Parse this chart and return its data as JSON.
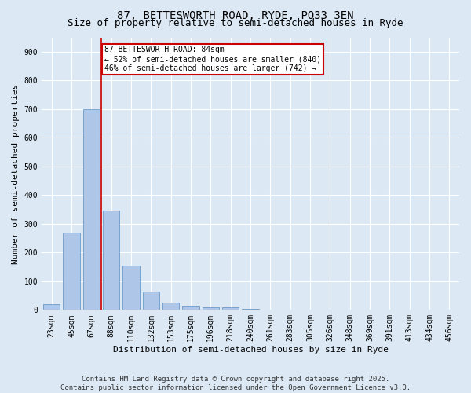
{
  "title_line1": "87, BETTESWORTH ROAD, RYDE, PO33 3EN",
  "title_line2": "Size of property relative to semi-detached houses in Ryde",
  "xlabel": "Distribution of semi-detached houses by size in Ryde",
  "ylabel": "Number of semi-detached properties",
  "bar_labels": [
    "23sqm",
    "45sqm",
    "67sqm",
    "88sqm",
    "110sqm",
    "132sqm",
    "153sqm",
    "175sqm",
    "196sqm",
    "218sqm",
    "240sqm",
    "261sqm",
    "283sqm",
    "305sqm",
    "326sqm",
    "348sqm",
    "369sqm",
    "391sqm",
    "413sqm",
    "434sqm",
    "456sqm"
  ],
  "bar_values": [
    20,
    270,
    700,
    345,
    155,
    65,
    25,
    15,
    10,
    10,
    5,
    0,
    0,
    0,
    0,
    0,
    0,
    0,
    0,
    0,
    0
  ],
  "bar_color": "#aec6e8",
  "bar_edge_color": "#5a8fc0",
  "vline_x_index": 2.5,
  "annotation_title": "87 BETTESWORTH ROAD: 84sqm",
  "annotation_line2": "← 52% of semi-detached houses are smaller (840)",
  "annotation_line3": "46% of semi-detached houses are larger (742) →",
  "annotation_box_color": "#ffffff",
  "annotation_box_edge_color": "#cc0000",
  "vline_color": "#cc0000",
  "background_color": "#dce9f5",
  "ylim": [
    0,
    950
  ],
  "yticks": [
    0,
    100,
    200,
    300,
    400,
    500,
    600,
    700,
    800,
    900
  ],
  "footer_line1": "Contains HM Land Registry data © Crown copyright and database right 2025.",
  "footer_line2": "Contains public sector information licensed under the Open Government Licence v3.0.",
  "title_fontsize": 10,
  "subtitle_fontsize": 9,
  "axis_label_fontsize": 8,
  "tick_fontsize": 7,
  "annotation_fontsize": 7,
  "footer_fontsize": 6.5
}
